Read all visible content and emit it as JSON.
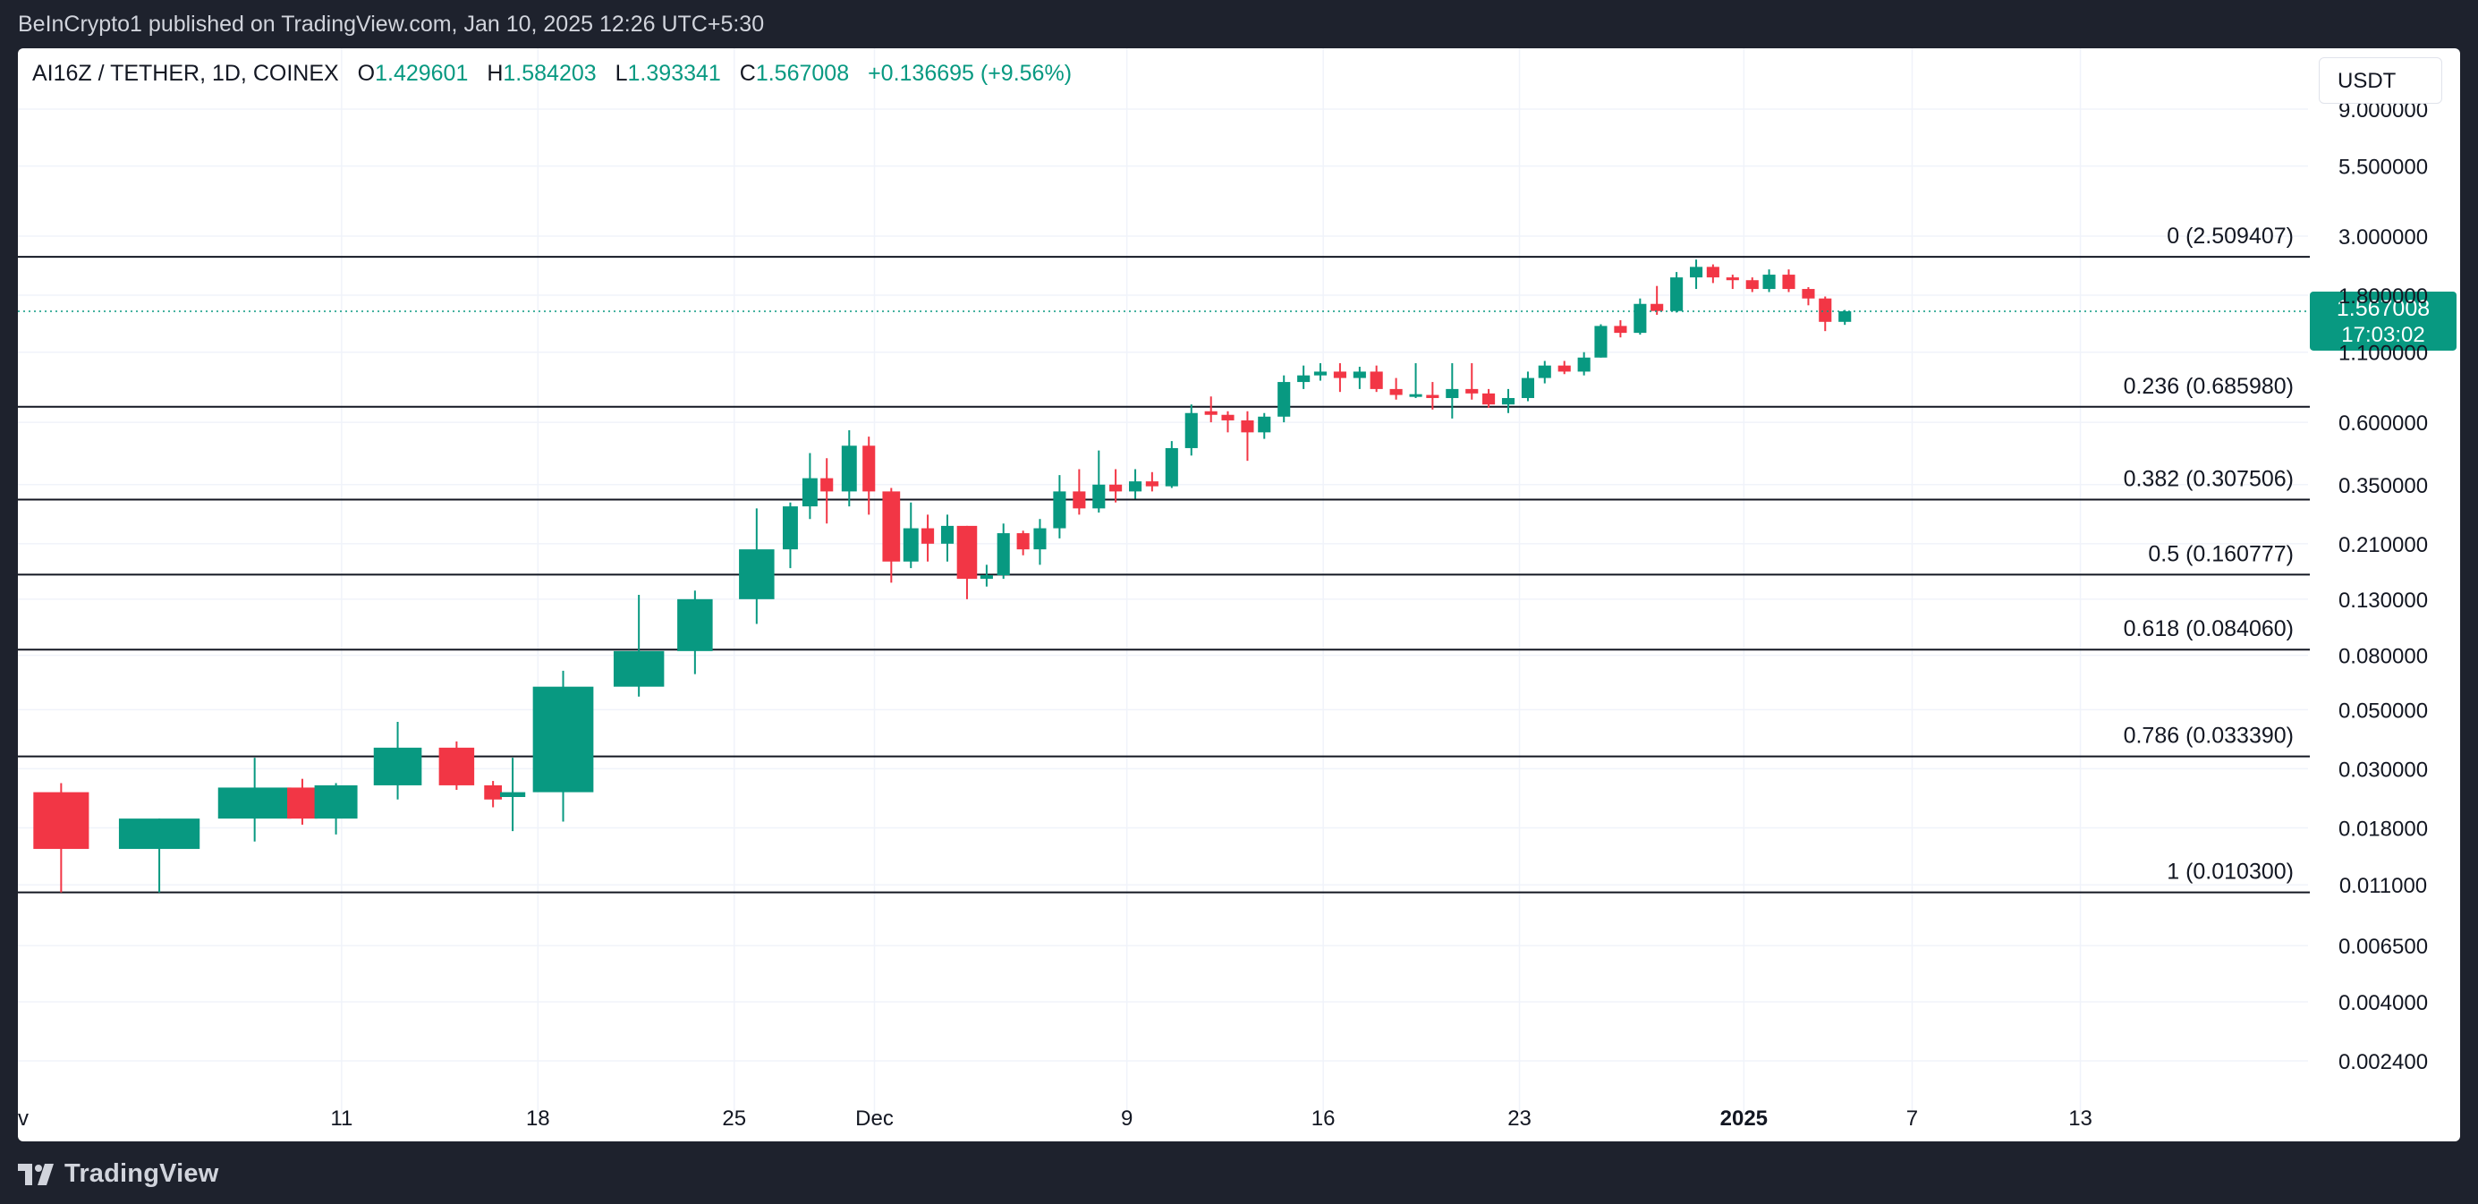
{
  "header": {
    "published_text": "BeInCrypto1 published on TradingView.com, Jan 10, 2025 12:26 UTC+5:30"
  },
  "legend": {
    "symbol": "AI16Z / TETHER, 1D, COINEX",
    "open_label": "O",
    "open": "1.429601",
    "high_label": "H",
    "high": "1.584203",
    "low_label": "L",
    "low": "1.393341",
    "close_label": "C",
    "close": "1.567008",
    "change": "+0.136695 (+9.56%)"
  },
  "currency_button": "USDT",
  "price_tag": {
    "price": "1.567008",
    "countdown": "17:03:02"
  },
  "footer": {
    "brand": "TradingView"
  },
  "colors": {
    "up": "#089981",
    "down": "#f23645",
    "fib_line": "#131722",
    "grid": "#f0f3fa",
    "axis_text": "#131722",
    "background_outer": "#1e222d"
  },
  "chart_data": {
    "type": "candlestick",
    "scale": "log",
    "ylim": [
      0.0018,
      10.0
    ],
    "y_ticks": [
      "9.000000",
      "5.500000",
      "3.000000",
      "1.800000",
      "1.100000",
      "0.600000",
      "0.350000",
      "0.210000",
      "0.130000",
      "0.080000",
      "0.050000",
      "0.030000",
      "0.018000",
      "0.011000",
      "0.006500",
      "0.004000",
      "0.002400"
    ],
    "x_ticks": [
      {
        "label": "v",
        "day": 0
      },
      {
        "label": "11",
        "day": 11
      },
      {
        "label": "18",
        "day": 18
      },
      {
        "label": "25",
        "day": 25
      },
      {
        "label": "Dec",
        "day": 30,
        "bold": false
      },
      {
        "label": "9",
        "day": 39
      },
      {
        "label": "16",
        "day": 46
      },
      {
        "label": "23",
        "day": 53
      },
      {
        "label": "2025",
        "day": 61,
        "bold": true
      },
      {
        "label": "7",
        "day": 67
      },
      {
        "label": "13",
        "day": 73
      }
    ],
    "fib_levels": [
      {
        "label": "0 (2.509407)",
        "value": 2.509407
      },
      {
        "label": "0.236 (0.685980)",
        "value": 0.68598
      },
      {
        "label": "0.382 (0.307506)",
        "value": 0.307506
      },
      {
        "label": "0.5 (0.160777)",
        "value": 0.160777
      },
      {
        "label": "0.618 (0.084060)",
        "value": 0.08406
      },
      {
        "label": "0.786 (0.033390)",
        "value": 0.03339
      },
      {
        "label": "1 (0.010300)",
        "value": 0.0103
      }
    ],
    "current_price": 1.567008,
    "candles": [
      {
        "day": 1.0,
        "w": 2.2,
        "o": 0.0245,
        "h": 0.0265,
        "l": 0.0103,
        "c": 0.015
      },
      {
        "day": 4.5,
        "w": 3.2,
        "o": 0.015,
        "h": 0.0195,
        "l": 0.0103,
        "c": 0.0195
      },
      {
        "day": 7.9,
        "w": 2.9,
        "o": 0.0195,
        "h": 0.033,
        "l": 0.016,
        "c": 0.0255
      },
      {
        "day": 9.6,
        "w": 1.2,
        "o": 0.0255,
        "h": 0.0275,
        "l": 0.0185,
        "c": 0.0195
      },
      {
        "day": 10.8,
        "w": 1.7,
        "o": 0.0195,
        "h": 0.0265,
        "l": 0.017,
        "c": 0.026
      },
      {
        "day": 13.0,
        "w": 1.9,
        "o": 0.026,
        "h": 0.045,
        "l": 0.023,
        "c": 0.036
      },
      {
        "day": 15.1,
        "w": 1.4,
        "o": 0.036,
        "h": 0.038,
        "l": 0.025,
        "c": 0.026
      },
      {
        "day": 16.4,
        "w": 0.7,
        "o": 0.026,
        "h": 0.027,
        "l": 0.0215,
        "c": 0.023
      },
      {
        "day": 17.1,
        "w": 1.0,
        "o": 0.0235,
        "h": 0.033,
        "l": 0.0175,
        "c": 0.0245
      },
      {
        "day": 18.9,
        "w": 2.4,
        "o": 0.0245,
        "h": 0.07,
        "l": 0.019,
        "c": 0.061
      },
      {
        "day": 21.6,
        "w": 2.0,
        "o": 0.061,
        "h": 0.135,
        "l": 0.056,
        "c": 0.083
      },
      {
        "day": 23.6,
        "w": 1.4,
        "o": 0.083,
        "h": 0.14,
        "l": 0.068,
        "c": 0.13
      },
      {
        "day": 25.8,
        "w": 1.4,
        "o": 0.13,
        "h": 0.285,
        "l": 0.105,
        "c": 0.2
      },
      {
        "day": 27.0,
        "w": 0.6,
        "o": 0.2,
        "h": 0.3,
        "l": 0.17,
        "c": 0.29
      },
      {
        "day": 27.7,
        "w": 0.6,
        "o": 0.29,
        "h": 0.46,
        "l": 0.26,
        "c": 0.37
      },
      {
        "day": 28.3,
        "w": 0.5,
        "o": 0.37,
        "h": 0.44,
        "l": 0.25,
        "c": 0.33
      },
      {
        "day": 29.1,
        "w": 0.6,
        "o": 0.33,
        "h": 0.56,
        "l": 0.29,
        "c": 0.49
      },
      {
        "day": 29.8,
        "w": 0.5,
        "o": 0.49,
        "h": 0.53,
        "l": 0.27,
        "c": 0.33
      },
      {
        "day": 30.6,
        "w": 0.7,
        "o": 0.33,
        "h": 0.34,
        "l": 0.15,
        "c": 0.18
      },
      {
        "day": 31.3,
        "w": 0.6,
        "o": 0.18,
        "h": 0.3,
        "l": 0.17,
        "c": 0.24
      },
      {
        "day": 31.9,
        "w": 0.5,
        "o": 0.24,
        "h": 0.27,
        "l": 0.18,
        "c": 0.21
      },
      {
        "day": 32.6,
        "w": 0.5,
        "o": 0.21,
        "h": 0.27,
        "l": 0.18,
        "c": 0.245
      },
      {
        "day": 33.3,
        "w": 0.8,
        "o": 0.245,
        "h": 0.245,
        "l": 0.13,
        "c": 0.155
      },
      {
        "day": 34.0,
        "w": 0.5,
        "o": 0.155,
        "h": 0.175,
        "l": 0.145,
        "c": 0.16
      },
      {
        "day": 34.6,
        "w": 0.5,
        "o": 0.16,
        "h": 0.25,
        "l": 0.155,
        "c": 0.23
      },
      {
        "day": 35.3,
        "w": 0.5,
        "o": 0.23,
        "h": 0.235,
        "l": 0.19,
        "c": 0.2
      },
      {
        "day": 35.9,
        "w": 0.5,
        "o": 0.2,
        "h": 0.26,
        "l": 0.175,
        "c": 0.24
      },
      {
        "day": 36.6,
        "w": 0.5,
        "o": 0.24,
        "h": 0.38,
        "l": 0.22,
        "c": 0.33
      },
      {
        "day": 37.3,
        "w": 0.5,
        "o": 0.33,
        "h": 0.4,
        "l": 0.27,
        "c": 0.285
      },
      {
        "day": 38.0,
        "w": 0.5,
        "o": 0.285,
        "h": 0.47,
        "l": 0.275,
        "c": 0.35
      },
      {
        "day": 38.6,
        "w": 0.5,
        "o": 0.35,
        "h": 0.4,
        "l": 0.3,
        "c": 0.33
      },
      {
        "day": 39.3,
        "w": 0.5,
        "o": 0.33,
        "h": 0.4,
        "l": 0.31,
        "c": 0.36
      },
      {
        "day": 39.9,
        "w": 0.5,
        "o": 0.36,
        "h": 0.39,
        "l": 0.33,
        "c": 0.345
      },
      {
        "day": 40.6,
        "w": 0.5,
        "o": 0.345,
        "h": 0.51,
        "l": 0.34,
        "c": 0.48
      },
      {
        "day": 41.3,
        "w": 0.5,
        "o": 0.48,
        "h": 0.7,
        "l": 0.45,
        "c": 0.65
      },
      {
        "day": 42.0,
        "w": 0.5,
        "o": 0.66,
        "h": 0.75,
        "l": 0.6,
        "c": 0.64
      },
      {
        "day": 42.6,
        "w": 0.5,
        "o": 0.64,
        "h": 0.66,
        "l": 0.55,
        "c": 0.61
      },
      {
        "day": 43.3,
        "w": 0.5,
        "o": 0.61,
        "h": 0.66,
        "l": 0.43,
        "c": 0.55
      },
      {
        "day": 43.9,
        "w": 0.5,
        "o": 0.55,
        "h": 0.65,
        "l": 0.52,
        "c": 0.63
      },
      {
        "day": 44.6,
        "w": 0.5,
        "o": 0.63,
        "h": 0.9,
        "l": 0.6,
        "c": 0.85
      },
      {
        "day": 45.3,
        "w": 0.5,
        "o": 0.85,
        "h": 0.98,
        "l": 0.8,
        "c": 0.9
      },
      {
        "day": 45.9,
        "w": 0.5,
        "o": 0.9,
        "h": 1.0,
        "l": 0.86,
        "c": 0.93
      },
      {
        "day": 46.6,
        "w": 0.5,
        "o": 0.93,
        "h": 1.0,
        "l": 0.78,
        "c": 0.88
      },
      {
        "day": 47.3,
        "w": 0.5,
        "o": 0.88,
        "h": 0.97,
        "l": 0.8,
        "c": 0.93
      },
      {
        "day": 47.9,
        "w": 0.5,
        "o": 0.93,
        "h": 0.98,
        "l": 0.78,
        "c": 0.8
      },
      {
        "day": 48.6,
        "w": 0.5,
        "o": 0.8,
        "h": 0.88,
        "l": 0.73,
        "c": 0.76
      },
      {
        "day": 49.3,
        "w": 0.5,
        "o": 0.76,
        "h": 1.0,
        "l": 0.74,
        "c": 0.765
      },
      {
        "day": 49.9,
        "w": 0.5,
        "o": 0.76,
        "h": 0.85,
        "l": 0.67,
        "c": 0.74
      },
      {
        "day": 50.6,
        "w": 0.5,
        "o": 0.74,
        "h": 1.0,
        "l": 0.62,
        "c": 0.8
      },
      {
        "day": 51.3,
        "w": 0.5,
        "o": 0.8,
        "h": 1.0,
        "l": 0.73,
        "c": 0.77
      },
      {
        "day": 51.9,
        "w": 0.5,
        "o": 0.77,
        "h": 0.8,
        "l": 0.68,
        "c": 0.7
      },
      {
        "day": 52.6,
        "w": 0.5,
        "o": 0.7,
        "h": 0.8,
        "l": 0.65,
        "c": 0.74
      },
      {
        "day": 53.3,
        "w": 0.5,
        "o": 0.74,
        "h": 0.93,
        "l": 0.72,
        "c": 0.88
      },
      {
        "day": 53.9,
        "w": 0.5,
        "o": 0.88,
        "h": 1.02,
        "l": 0.84,
        "c": 0.98
      },
      {
        "day": 54.6,
        "w": 0.5,
        "o": 0.98,
        "h": 1.02,
        "l": 0.91,
        "c": 0.93
      },
      {
        "day": 55.3,
        "w": 0.5,
        "o": 0.93,
        "h": 1.1,
        "l": 0.9,
        "c": 1.05
      },
      {
        "day": 55.9,
        "w": 0.5,
        "o": 1.05,
        "h": 1.4,
        "l": 1.05,
        "c": 1.38
      },
      {
        "day": 56.6,
        "w": 0.5,
        "o": 1.38,
        "h": 1.45,
        "l": 1.25,
        "c": 1.3
      },
      {
        "day": 57.3,
        "w": 0.5,
        "o": 1.3,
        "h": 1.75,
        "l": 1.28,
        "c": 1.67
      },
      {
        "day": 57.9,
        "w": 0.5,
        "o": 1.67,
        "h": 1.95,
        "l": 1.52,
        "c": 1.57
      },
      {
        "day": 58.6,
        "w": 0.5,
        "o": 1.57,
        "h": 2.2,
        "l": 1.55,
        "c": 2.1
      },
      {
        "day": 59.3,
        "w": 0.5,
        "o": 2.1,
        "h": 2.45,
        "l": 1.9,
        "c": 2.3
      },
      {
        "day": 59.9,
        "w": 0.5,
        "o": 2.3,
        "h": 2.35,
        "l": 2.0,
        "c": 2.1
      },
      {
        "day": 60.6,
        "w": 0.5,
        "o": 2.1,
        "h": 2.15,
        "l": 1.9,
        "c": 2.05
      },
      {
        "day": 61.3,
        "w": 0.5,
        "o": 2.05,
        "h": 2.1,
        "l": 1.85,
        "c": 1.9
      },
      {
        "day": 61.9,
        "w": 0.5,
        "o": 1.9,
        "h": 2.25,
        "l": 1.85,
        "c": 2.15
      },
      {
        "day": 62.6,
        "w": 0.5,
        "o": 2.15,
        "h": 2.25,
        "l": 1.85,
        "c": 1.9
      },
      {
        "day": 63.3,
        "w": 0.5,
        "o": 1.9,
        "h": 1.93,
        "l": 1.65,
        "c": 1.75
      },
      {
        "day": 63.9,
        "w": 0.5,
        "o": 1.75,
        "h": 1.78,
        "l": 1.32,
        "c": 1.43
      },
      {
        "day": 64.6,
        "w": 0.5,
        "o": 1.43,
        "h": 1.5842,
        "l": 1.3933,
        "c": 1.567
      }
    ]
  }
}
